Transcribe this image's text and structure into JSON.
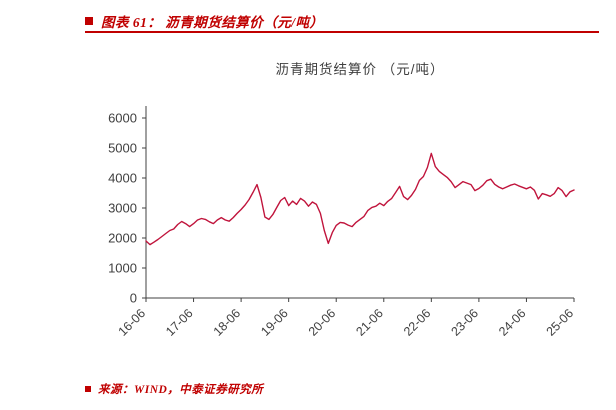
{
  "header": {
    "title": "图表 61：  沥青期货结算价（元/吨）"
  },
  "footer": {
    "source": "来源：WIND，中泰证券研究所"
  },
  "colors": {
    "accent": "#C00000",
    "line": "#C0143C",
    "axis": "#404040"
  },
  "chart_data": {
    "type": "line",
    "title": "沥青期货结算价 （元/吨）",
    "xlabel": "",
    "ylabel": "",
    "ylim": [
      0,
      6000
    ],
    "y_ticks": [
      0,
      1000,
      2000,
      3000,
      4000,
      5000,
      6000
    ],
    "x_tick_labels": [
      "16-06",
      "17-06",
      "18-06",
      "19-06",
      "20-06",
      "21-06",
      "22-06",
      "23-06",
      "24-06",
      "25-06"
    ],
    "grid": false,
    "legend": "none",
    "series": [
      {
        "name": "沥青期货结算价",
        "color": "#C0143C",
        "values": [
          1900,
          1780,
          1860,
          1950,
          2050,
          2150,
          2250,
          2300,
          2450,
          2550,
          2480,
          2380,
          2480,
          2600,
          2650,
          2620,
          2540,
          2480,
          2600,
          2680,
          2600,
          2560,
          2680,
          2820,
          2950,
          3100,
          3280,
          3520,
          3780,
          3350,
          2700,
          2620,
          2780,
          3020,
          3250,
          3350,
          3080,
          3230,
          3120,
          3320,
          3230,
          3060,
          3200,
          3120,
          2820,
          2250,
          1820,
          2180,
          2420,
          2520,
          2500,
          2430,
          2380,
          2520,
          2620,
          2720,
          2920,
          3020,
          3060,
          3160,
          3080,
          3220,
          3320,
          3520,
          3720,
          3380,
          3280,
          3420,
          3620,
          3920,
          4050,
          4350,
          4820,
          4380,
          4220,
          4120,
          4020,
          3880,
          3680,
          3780,
          3880,
          3830,
          3780,
          3580,
          3650,
          3760,
          3910,
          3960,
          3790,
          3700,
          3640,
          3700,
          3760,
          3800,
          3740,
          3690,
          3640,
          3700,
          3590,
          3300,
          3480,
          3440,
          3390,
          3480,
          3680,
          3580,
          3380,
          3540,
          3600
        ]
      }
    ]
  }
}
